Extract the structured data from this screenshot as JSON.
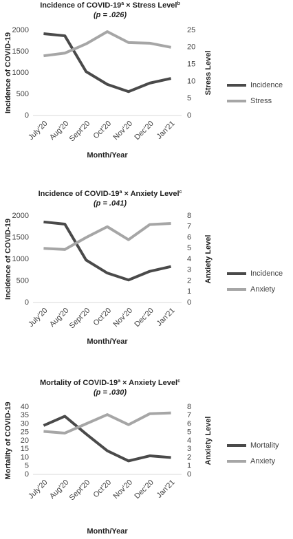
{
  "chart_data": [
    {
      "type": "line",
      "title": [
        "Incidence of COVID-19",
        "a",
        " × Stress Level",
        "b"
      ],
      "subtitle": "(p = .026)",
      "xlabel": "Month/Year",
      "ylabel": "Incidence of COVID-19",
      "y2label": "Stress Level",
      "categories": [
        "July'20",
        "Aug'20",
        "Sept'20",
        "Oct'20",
        "Nov'20",
        "Dec'20",
        "Jan'21"
      ],
      "ylim": [
        0,
        2000
      ],
      "yticks": [
        0,
        500,
        1000,
        1500,
        2000
      ],
      "y2lim": [
        0,
        25
      ],
      "y2ticks": [
        0,
        5,
        10,
        15,
        20,
        25
      ],
      "grid": false,
      "legend": "right",
      "series": [
        {
          "name": "Incidence",
          "color": "#4a4a4a",
          "values": [
            1920,
            1870,
            1030,
            730,
            560,
            760,
            870
          ]
        },
        {
          "name": "Stress",
          "color": "#a6a6a6",
          "axis": "y2",
          "values": [
            17.5,
            18.3,
            21,
            24.6,
            21.4,
            21.2,
            20
          ]
        }
      ]
    },
    {
      "type": "line",
      "title": [
        "Incidence of COVID-19",
        "a",
        " × Anxiety Level",
        "c"
      ],
      "subtitle": "(p = .041)",
      "xlabel": "Month/Year",
      "ylabel": "Incidence of COVID-19",
      "y2label": "Anxiety Level",
      "categories": [
        "July'20",
        "Aug'20",
        "Sept'20",
        "Oct'20",
        "Nov'20",
        "Dec'20",
        "Jan'21"
      ],
      "ylim": [
        0,
        2000
      ],
      "yticks": [
        0,
        500,
        1000,
        1500,
        2000
      ],
      "y2lim": [
        0,
        8
      ],
      "y2ticks": [
        0,
        1,
        2,
        3,
        4,
        5,
        6,
        7,
        8
      ],
      "grid": false,
      "legend": "right",
      "series": [
        {
          "name": "Incidence",
          "color": "#4a4a4a",
          "values": [
            1860,
            1810,
            980,
            680,
            520,
            720,
            830
          ]
        },
        {
          "name": "Anxiety",
          "color": "#a6a6a6",
          "axis": "y2",
          "values": [
            5,
            4.9,
            6,
            7,
            5.8,
            7.2,
            7.3
          ]
        }
      ]
    },
    {
      "type": "line",
      "title": [
        "Mortality of COVID-19",
        "a",
        " × Anxiety Level",
        "c"
      ],
      "subtitle": "(p = .030)",
      "xlabel": "Month/Year",
      "ylabel": "Mortality of COVID-19",
      "y2label": "Anxiety Level",
      "categories": [
        "July'20",
        "Aug'20",
        "Sept'20",
        "Oct'20",
        "Nov'20",
        "Dec'20",
        "Jan'21"
      ],
      "ylim": [
        0,
        40
      ],
      "yticks": [
        0,
        5,
        10,
        15,
        20,
        25,
        30,
        35,
        40
      ],
      "y2lim": [
        0,
        8
      ],
      "y2ticks": [
        0,
        1,
        2,
        3,
        4,
        5,
        6,
        7,
        8
      ],
      "grid": false,
      "legend": "right",
      "series": [
        {
          "name": "Mortality",
          "color": "#4a4a4a",
          "values": [
            29,
            34.5,
            24,
            14,
            8,
            11,
            10
          ]
        },
        {
          "name": "Anxiety",
          "color": "#a6a6a6",
          "axis": "y2",
          "values": [
            5.1,
            4.9,
            6,
            7.1,
            5.9,
            7.2,
            7.3
          ]
        }
      ]
    }
  ]
}
